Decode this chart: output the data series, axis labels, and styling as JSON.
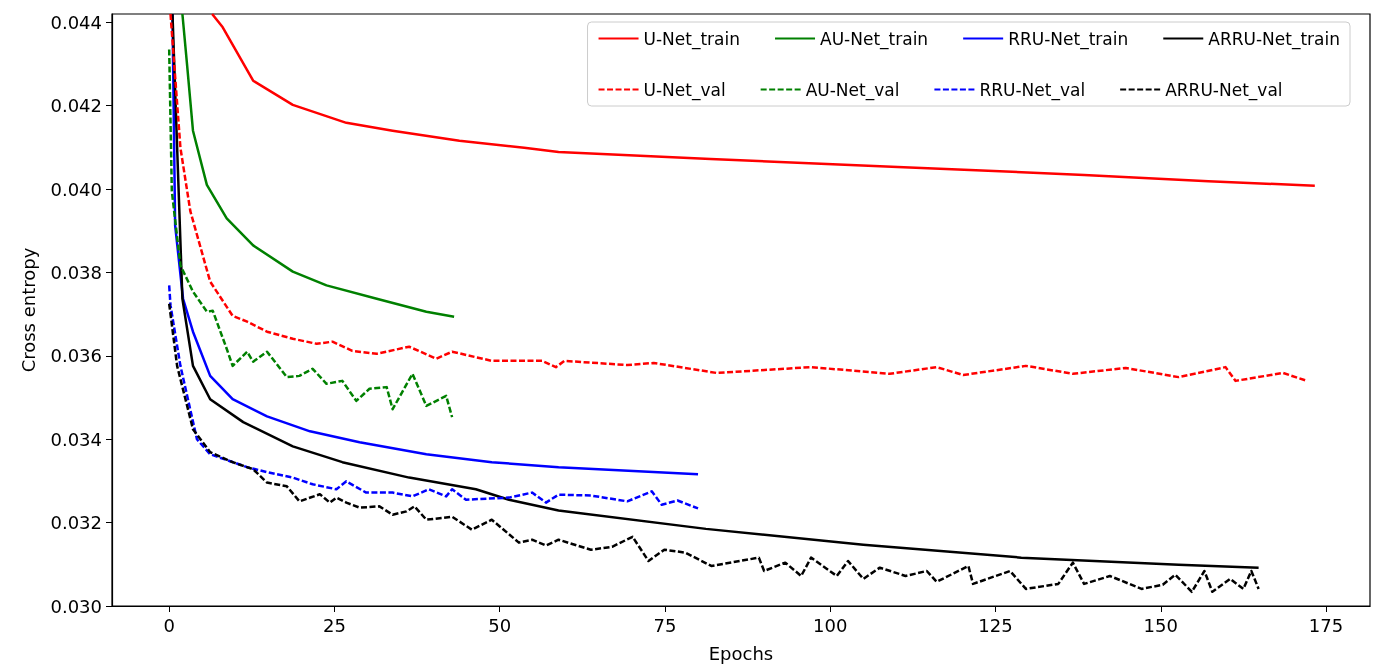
{
  "chart_data": {
    "type": "line",
    "xlabel": "Epochs",
    "ylabel": "Cross entropy",
    "xlim": [
      -8.65,
      181.65
    ],
    "ylim": [
      0.03,
      0.0442
    ],
    "xticks": [
      0,
      25,
      50,
      75,
      100,
      125,
      150,
      175
    ],
    "yticks": [
      {
        "value": 0.03,
        "label": "0.030"
      },
      {
        "value": 0.032,
        "label": "0.032"
      },
      {
        "value": 0.034,
        "label": "0.034"
      },
      {
        "value": 0.036,
        "label": "0.036"
      },
      {
        "value": 0.038,
        "label": "0.038"
      },
      {
        "value": 0.04,
        "label": "0.040"
      },
      {
        "value": 0.042,
        "label": "0.042"
      },
      {
        "value": 0.044,
        "label": "0.044"
      }
    ],
    "grid": false,
    "legend": "top right",
    "marker": "none",
    "series": [
      {
        "name": "U-Net_train",
        "color": "#ff0000",
        "line_style": "solid",
        "x": [
          6.5,
          8.1,
          12.7,
          18.7,
          26.8,
          33.8,
          43.9,
          53.7,
          58.9,
          81.9,
          110.2,
          138.4,
          157.2,
          173.3
        ],
        "values": [
          0.0442,
          0.04388,
          0.0426,
          0.04202,
          0.04159,
          0.0414,
          0.04116,
          0.04099,
          0.04089,
          0.04072,
          0.04053,
          0.04034,
          0.04019,
          0.04008
        ]
      },
      {
        "name": "AU-Net_train",
        "color": "#008000",
        "line_style": "solid",
        "x": [
          2,
          2.7,
          3.6,
          5.7,
          8.7,
          12.7,
          18.7,
          23.8,
          31.4,
          38.9,
          43.1
        ],
        "values": [
          0.0442,
          0.04299,
          0.0414,
          0.0401,
          0.0393,
          0.03865,
          0.03802,
          0.03769,
          0.03737,
          0.03706,
          0.03694
        ]
      },
      {
        "name": "RRU-Net_train",
        "color": "#0000ff",
        "line_style": "solid",
        "x": [
          0.5,
          0.9,
          2.1,
          3.6,
          6.2,
          9.6,
          14.8,
          21.3,
          28.8,
          38.9,
          48.8,
          58.9,
          80
        ],
        "values": [
          0.0442,
          0.03913,
          0.03737,
          0.03658,
          0.03552,
          0.03496,
          0.03455,
          0.03419,
          0.03393,
          0.03364,
          0.03345,
          0.03333,
          0.03316
        ]
      },
      {
        "name": "ARRU-Net_train",
        "color": "#000000",
        "line_style": "solid",
        "x": [
          0.5,
          2,
          3.6,
          6.2,
          11.2,
          18.7,
          26.2,
          36.3,
          46.4,
          51.4,
          58.9,
          81.2,
          105,
          128.9,
          152.7,
          164.8
        ],
        "values": [
          0.0442,
          0.03737,
          0.03576,
          0.03496,
          0.03441,
          0.03383,
          0.03345,
          0.03308,
          0.0328,
          0.03255,
          0.03229,
          0.03185,
          0.03147,
          0.03116,
          0.03099,
          0.03092
        ]
      },
      {
        "name": "U-Net_val",
        "color": "#ff0000",
        "line_style": "dashed",
        "x": [
          0.2,
          1.7,
          3.2,
          6.2,
          9.6,
          11.8,
          14.8,
          18.7,
          22.3,
          24.7,
          27.7,
          31.4,
          36.3,
          40.4,
          42.8,
          48.8,
          56.4,
          58.5,
          59.8,
          69.3,
          73.3,
          82.8,
          97.1,
          109,
          116.1,
          120.1,
          129.6,
          136.7,
          144.7,
          152.7,
          159.8,
          161.3,
          168.5,
          172.1
        ],
        "values": [
          0.0442,
          0.04099,
          0.03947,
          0.03778,
          0.03696,
          0.03682,
          0.03658,
          0.03641,
          0.03629,
          0.03634,
          0.03612,
          0.03605,
          0.03622,
          0.03593,
          0.0361,
          0.03588,
          0.03588,
          0.03573,
          0.03588,
          0.03578,
          0.03583,
          0.03559,
          0.03573,
          0.03557,
          0.03573,
          0.03554,
          0.03576,
          0.03557,
          0.03571,
          0.03549,
          0.03573,
          0.0354,
          0.03559,
          0.0354
        ]
      },
      {
        "name": "AU-Net_val",
        "color": "#008000",
        "line_style": "dashed",
        "x": [
          0,
          0.4,
          1.7,
          3.6,
          5.7,
          6.6,
          8.7,
          9.6,
          11.8,
          12.7,
          14.8,
          17.8,
          19.7,
          21.7,
          23.8,
          26.2,
          28.3,
          30.3,
          32.9,
          33.8,
          36.8,
          38.9,
          41.9,
          42.8
        ],
        "values": [
          0.04335,
          0.03995,
          0.03817,
          0.03754,
          0.03706,
          0.03708,
          0.03617,
          0.03576,
          0.0361,
          0.03586,
          0.0361,
          0.03549,
          0.03552,
          0.03569,
          0.03533,
          0.0354,
          0.03492,
          0.03521,
          0.03525,
          0.03472,
          0.03557,
          0.0348,
          0.03504,
          0.03453
        ]
      },
      {
        "name": "RRU-Net_val",
        "color": "#0000ff",
        "line_style": "dashed",
        "x": [
          0,
          0.2,
          1.7,
          4.2,
          6.2,
          11.8,
          14.8,
          18.7,
          21.7,
          25.3,
          26.8,
          29.8,
          33.8,
          36.8,
          39.3,
          41.9,
          42.8,
          44.9,
          51.4,
          54.9,
          57,
          58.9,
          63.8,
          69.3,
          73,
          74.5,
          76.9,
          80
        ],
        "values": [
          0.03769,
          0.03721,
          0.03576,
          0.034,
          0.03364,
          0.03333,
          0.03321,
          0.03308,
          0.03292,
          0.0328,
          0.03299,
          0.03272,
          0.03272,
          0.03263,
          0.0328,
          0.03263,
          0.0328,
          0.03255,
          0.0326,
          0.03272,
          0.03248,
          0.03267,
          0.03265,
          0.03251,
          0.03275,
          0.03243,
          0.03253,
          0.03234
        ]
      },
      {
        "name": "ARRU-Net_val",
        "color": "#000000",
        "line_style": "dashed",
        "x": [
          0,
          1.2,
          3.6,
          6.2,
          9.6,
          12.7,
          14.8,
          17.8,
          19.7,
          22.8,
          24.3,
          25.3,
          26.8,
          28.8,
          31.8,
          33.8,
          35.9,
          37.1,
          38.9,
          42.8,
          45.8,
          48.8,
          52.9,
          54.9,
          57,
          58.9,
          63.8,
          67,
          70.1,
          72.5,
          74.9,
          78.1,
          82,
          89.2,
          90,
          93.2,
          95.6,
          97.1,
          101,
          102.7,
          105,
          107.5,
          111.4,
          114.6,
          116.1,
          120.9,
          121.6,
          127.2,
          129.6,
          134.5,
          136.7,
          138.4,
          142.3,
          147.1,
          150.3,
          152.2,
          154.7,
          156.6,
          157.8,
          160.5,
          162.5,
          163.7,
          164.8
        ],
        "values": [
          0.03725,
          0.03576,
          0.03424,
          0.03369,
          0.03345,
          0.03328,
          0.03296,
          0.03287,
          0.03251,
          0.03268,
          0.03248,
          0.0326,
          0.03248,
          0.03236,
          0.03239,
          0.03219,
          0.03227,
          0.03239,
          0.03207,
          0.03214,
          0.03183,
          0.03207,
          0.03152,
          0.03159,
          0.03145,
          0.03159,
          0.03135,
          0.03142,
          0.03166,
          0.03108,
          0.03135,
          0.03128,
          0.03096,
          0.03116,
          0.03084,
          0.03104,
          0.03072,
          0.03116,
          0.03072,
          0.03108,
          0.03065,
          0.03092,
          0.03072,
          0.03084,
          0.03058,
          0.03096,
          0.03053,
          0.03084,
          0.03041,
          0.03053,
          0.03104,
          0.03053,
          0.03072,
          0.03041,
          0.03051,
          0.03075,
          0.03034,
          0.03084,
          0.03034,
          0.03065,
          0.03041,
          0.03084,
          0.03041
        ]
      }
    ]
  }
}
